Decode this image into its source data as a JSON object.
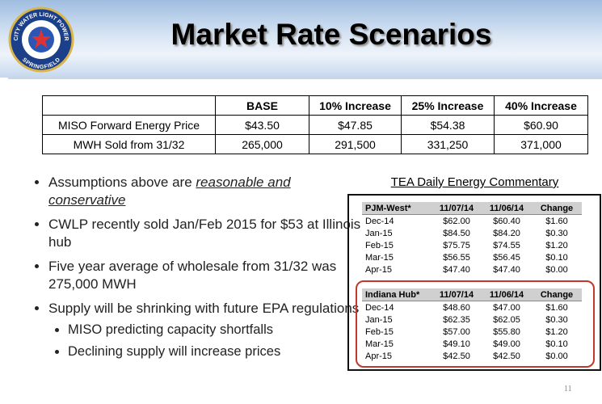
{
  "title": "Market Rate Scenarios",
  "logo": {
    "top": "CITY WATER LIGHT POWER",
    "bottom": "SPRINGFIELD"
  },
  "table": {
    "header": [
      "BASE",
      "10% Increase",
      "25% Increase",
      "40% Increase"
    ],
    "rows": [
      [
        "MISO Forward Energy Price",
        "$43.50",
        "$47.85",
        "$54.38",
        "$60.90"
      ],
      [
        "MWH Sold from 31/32",
        "265,000",
        "291,500",
        "331,250",
        "371,000"
      ]
    ]
  },
  "bullets": [
    {
      "text": "Assumptions above are ",
      "emphasis": "reasonable and conservative"
    },
    {
      "text": "CWLP recently sold Jan/Feb 2015 for $53 at Illinois hub"
    },
    {
      "text": "Five year average of wholesale from 31/32 was 275,000 MWH"
    },
    {
      "text": "Supply will be shrinking with future EPA regulations"
    }
  ],
  "sub_bullets": [
    "MISO predicting capacity shortfalls",
    "Declining supply will increase prices"
  ],
  "commentary": {
    "title": "TEA Daily Energy Commentary",
    "tables": [
      {
        "header": [
          "PJM-West*",
          "11/07/14",
          "11/06/14",
          "Change"
        ],
        "rows": [
          [
            "Dec-14",
            "$62.00",
            "$60.40",
            "$1.60"
          ],
          [
            "Jan-15",
            "$84.50",
            "$84.20",
            "$0.30"
          ],
          [
            "Feb-15",
            "$75.75",
            "$74.55",
            "$1.20"
          ],
          [
            "Mar-15",
            "$56.55",
            "$56.45",
            "$0.10"
          ],
          [
            "Apr-15",
            "$47.40",
            "$47.40",
            "$0.00"
          ]
        ]
      },
      {
        "header": [
          "Indiana Hub*",
          "11/07/14",
          "11/06/14",
          "Change"
        ],
        "rows": [
          [
            "Dec-14",
            "$48.60",
            "$47.00",
            "$1.60"
          ],
          [
            "Jan-15",
            "$62.35",
            "$62.05",
            "$0.30"
          ],
          [
            "Feb-15",
            "$57.00",
            "$55.80",
            "$1.20"
          ],
          [
            "Mar-15",
            "$49.10",
            "$49.00",
            "$0.10"
          ],
          [
            "Apr-15",
            "$42.50",
            "$42.50",
            "$0.00"
          ]
        ]
      }
    ]
  },
  "page_number": "11"
}
